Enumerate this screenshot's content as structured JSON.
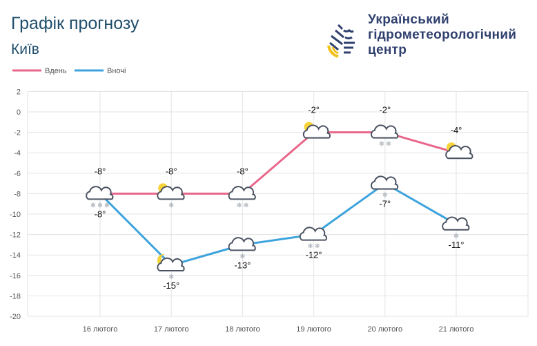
{
  "header": {
    "title": "Графік прогнозу",
    "city": "Київ",
    "org_lines": [
      "Український",
      "гідрометеорологічний",
      "центр"
    ]
  },
  "chart_data": {
    "type": "line",
    "categories": [
      "16 лютого",
      "17 лютого",
      "18 лютого",
      "19 лютого",
      "20 лютого",
      "21 лютого"
    ],
    "series": [
      {
        "name": "Вдень",
        "color": "#e8668a",
        "values": [
          -8,
          -8,
          -8,
          -2,
          -2,
          -4
        ],
        "icons": [
          "cloud-snow-3",
          "sun-cloud-snow-1",
          "cloud-snow-2",
          "sun-cloud",
          "cloud-snow-2",
          "sun-cloud"
        ]
      },
      {
        "name": "Вночі",
        "color": "#3da3dd",
        "values": [
          -8,
          -15,
          -13,
          -12,
          -7,
          -11
        ],
        "icons": [
          "none",
          "moon-cloud-snow-1",
          "cloud-snow-1",
          "cloud-snow-2",
          "cloud-snow-1",
          "cloud-snow-1"
        ]
      }
    ],
    "ylim": [
      -20,
      2
    ],
    "yticks": [
      2,
      0,
      -2,
      -4,
      -6,
      -8,
      -10,
      -12,
      -14,
      -16,
      -18,
      -20
    ],
    "grid": true,
    "legend": "top-left",
    "unit": "°"
  }
}
